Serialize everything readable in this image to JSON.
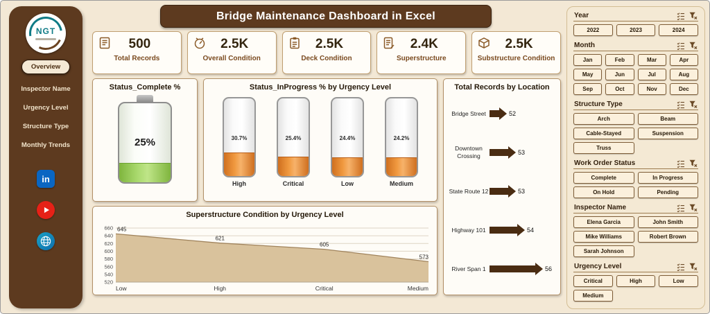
{
  "header": {
    "title": "Bridge Maintenance Dashboard in Excel"
  },
  "sidebar": {
    "logo_text": "NGT",
    "nav": [
      {
        "label": "Overview",
        "active": true
      },
      {
        "label": "Inspector Name",
        "active": false
      },
      {
        "label": "Urgency Level",
        "active": false
      },
      {
        "label": "Structure Type",
        "active": false
      },
      {
        "label": "Monthly Trends",
        "active": false
      }
    ],
    "social": [
      {
        "name": "linkedin",
        "glyph": "in"
      },
      {
        "name": "youtube"
      },
      {
        "name": "website"
      }
    ]
  },
  "kpis": [
    {
      "value": "500",
      "label": "Total Records",
      "icon": "report-icon"
    },
    {
      "value": "2.5K",
      "label": "Overall Condition",
      "icon": "rating-icon"
    },
    {
      "value": "2.5K",
      "label": "Deck Condition",
      "icon": "clipboard-icon"
    },
    {
      "value": "2.4K",
      "label": "Superstructure",
      "icon": "document-icon"
    },
    {
      "value": "2.5K",
      "label": "Substructure Condition",
      "icon": "box-icon"
    }
  ],
  "charts": {
    "status_complete": {
      "type": "battery-gauge",
      "title": "Status_Complete %",
      "value_pct": 25,
      "value_label": "25%"
    },
    "status_inprogress": {
      "type": "cylinder-gauges",
      "title": "Status_InProgress % by Urgency Level",
      "categories": [
        "High",
        "Critical",
        "Low",
        "Medium"
      ],
      "values_pct": [
        30.7,
        25.4,
        24.4,
        24.2
      ],
      "value_labels": [
        "30.7%",
        "25.4%",
        "24.4%",
        "24.2%"
      ]
    },
    "superstructure": {
      "type": "area",
      "title": "Superstructure Condition by Urgency Level",
      "categories": [
        "Low",
        "High",
        "Critical",
        "Medium"
      ],
      "values": [
        645,
        621,
        605,
        573
      ],
      "ylim": [
        520,
        660
      ],
      "yticks": [
        520,
        540,
        560,
        580,
        600,
        620,
        640,
        660
      ],
      "grid": "horizontal"
    },
    "locations": {
      "type": "arrow-bars",
      "title": "Total Records by Location",
      "categories": [
        "Bridge Street",
        "Downtown Crossing",
        "State Route 12",
        "Highway 101",
        "River Span 1"
      ],
      "values": [
        52,
        53,
        53,
        54,
        56
      ]
    }
  },
  "slicers": [
    {
      "title": "Year",
      "columns": 3,
      "options": [
        "2022",
        "2023",
        "2024"
      ]
    },
    {
      "title": "Month",
      "columns": 4,
      "options": [
        "Jan",
        "Feb",
        "Mar",
        "Apr",
        "May",
        "Jun",
        "Jul",
        "Aug",
        "Sep",
        "Oct",
        "Nov",
        "Dec"
      ]
    },
    {
      "title": "Structure Type",
      "columns": 2,
      "options": [
        "Arch",
        "Beam",
        "Cable-Stayed",
        "Suspension",
        "Truss"
      ]
    },
    {
      "title": "Work Order Status",
      "columns": 2,
      "options": [
        "Complete",
        "In Progress",
        "On Hold",
        "Pending"
      ]
    },
    {
      "title": "Inspector Name",
      "columns": 2,
      "options": [
        "Elena Garcia",
        "John Smith",
        "Mike Williams",
        "Robert Brown",
        "Sarah Johnson"
      ]
    },
    {
      "title": "Urgency Level",
      "columns": 3,
      "options": [
        "Critical",
        "High",
        "Low",
        "Medium"
      ]
    }
  ],
  "slicer_header_icons": [
    "multiselect-icon",
    "clear-filter-icon"
  ],
  "colors": {
    "brown_dark": "#5d3a1f",
    "cream_bg": "#f3e8d5",
    "orange_fill": "#e0822f",
    "green_fill": "#8fc04c",
    "tan_area": "#d9c29c",
    "arrow_brown": "#4a2c12"
  }
}
